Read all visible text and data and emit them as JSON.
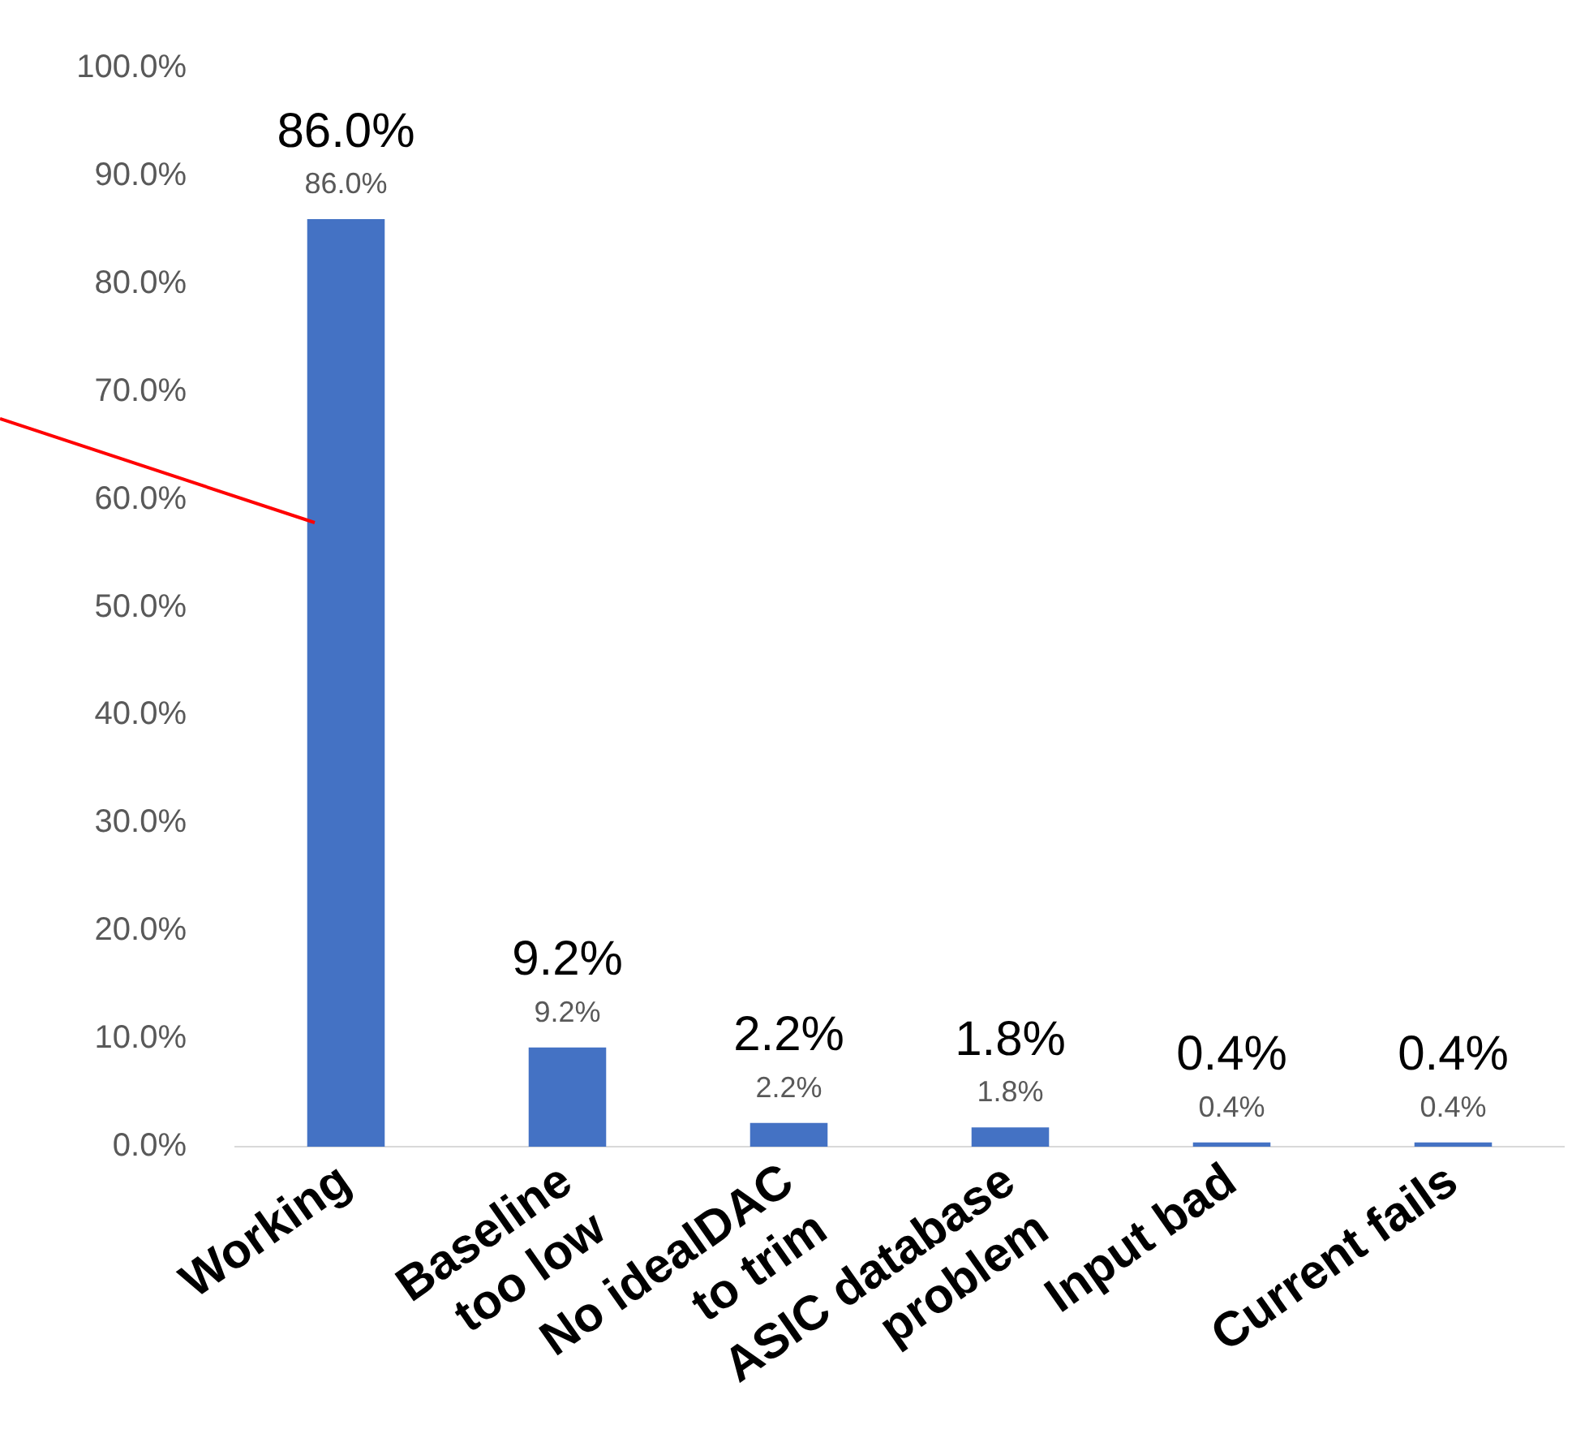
{
  "chart_data": {
    "type": "bar",
    "categories": [
      "Working",
      "Baseline\ntoo low",
      "No idealDAC\nto trim",
      "ASIC database\nproblem",
      "Input bad",
      "Current fails"
    ],
    "values": [
      86.0,
      9.2,
      2.2,
      1.8,
      0.4,
      0.4
    ],
    "color": "#4472c4",
    "ylim": [
      0,
      100
    ],
    "yticks": [
      {
        "value": 0,
        "label": "0.0%"
      },
      {
        "value": 10,
        "label": "10.0%"
      },
      {
        "value": 20,
        "label": "20.0%"
      },
      {
        "value": 30,
        "label": "30.0%"
      },
      {
        "value": 40,
        "label": "40.0%"
      },
      {
        "value": 50,
        "label": "50.0%"
      },
      {
        "value": 60,
        "label": "60.0%"
      },
      {
        "value": 70,
        "label": "70.0%"
      },
      {
        "value": 80,
        "label": "80.0%"
      },
      {
        "value": 90,
        "label": "90.0%"
      },
      {
        "value": 100,
        "label": "100.0%"
      }
    ],
    "value_labels": [
      "86.0%",
      "9.2%",
      "2.2%",
      "1.8%",
      "0.4%",
      "0.4%"
    ],
    "annotations": [
      {
        "text": "86.0%",
        "x": "Working",
        "y": 86.0
      },
      {
        "text": "9.2%",
        "x": "Baseline\ntoo low",
        "y": 9.2
      },
      {
        "text": "2.2%",
        "x": "No idealDAC\nto trim",
        "y": 2.2
      },
      {
        "text": "1.8%",
        "x": "ASIC database\nproblem",
        "y": 1.8
      },
      {
        "text": "0.4%",
        "x": "Input bad",
        "y": 0.4
      },
      {
        "text": "0.4%",
        "x": "Current fails",
        "y": 0.4
      }
    ],
    "grid": false,
    "legend": false
  }
}
